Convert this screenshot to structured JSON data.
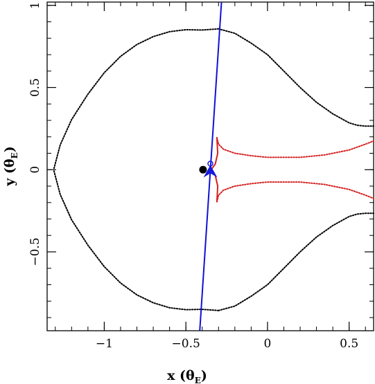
{
  "chart_data": {
    "type": "scatter",
    "xlabel": {
      "main": "x (θ",
      "sub": "E",
      "close": ")"
    },
    "ylabel": {
      "main": "y (θ",
      "sub": "E",
      "close": ")"
    },
    "xlim": [
      -1.35,
      0.65
    ],
    "ylim": [
      -0.98,
      1.02
    ],
    "x_ticks": [
      {
        "value": -1,
        "label": "−1"
      },
      {
        "value": -0.5,
        "label": "−0.5"
      },
      {
        "value": 0,
        "label": "0"
      },
      {
        "value": 0.5,
        "label": "0.5"
      }
    ],
    "y_ticks": [
      {
        "value": -0.5,
        "label": "−0.5"
      },
      {
        "value": 0,
        "label": "0"
      },
      {
        "value": 0.5,
        "label": "0.5"
      },
      {
        "value": 1,
        "label": "1"
      }
    ],
    "grid": false,
    "legend": false,
    "colors": {
      "critical_curve": "#000000",
      "caustic": "#d42020",
      "trajectory": "#1010d8",
      "source": "#1818e0",
      "lens": "#000000"
    },
    "critical_curve": {
      "upper": [
        [
          -0.3,
          0.857
        ],
        [
          -0.4,
          0.85
        ],
        [
          -0.5,
          0.852
        ],
        [
          -0.6,
          0.84
        ],
        [
          -0.7,
          0.81
        ],
        [
          -0.8,
          0.762
        ],
        [
          -0.9,
          0.69
        ],
        [
          -1.0,
          0.59
        ],
        [
          -1.1,
          0.46
        ],
        [
          -1.2,
          0.305
        ],
        [
          -1.27,
          0.15
        ],
        [
          -1.31,
          0.0
        ]
      ],
      "upper_right": [
        [
          -0.3,
          0.857
        ],
        [
          -0.2,
          0.83
        ],
        [
          -0.1,
          0.77
        ],
        [
          0.0,
          0.7
        ],
        [
          0.1,
          0.6
        ],
        [
          0.2,
          0.5
        ],
        [
          0.3,
          0.41
        ],
        [
          0.4,
          0.34
        ],
        [
          0.5,
          0.285
        ],
        [
          0.55,
          0.27
        ],
        [
          0.6,
          0.265
        ],
        [
          0.65,
          0.265
        ]
      ]
    },
    "caustic_upper": [
      [
        -0.31,
        0.195
      ],
      [
        -0.3,
        0.155
      ],
      [
        -0.27,
        0.125
      ],
      [
        -0.2,
        0.1
      ],
      [
        -0.1,
        0.085
      ],
      [
        0.0,
        0.075
      ],
      [
        0.2,
        0.075
      ],
      [
        0.35,
        0.09
      ],
      [
        0.5,
        0.12
      ],
      [
        0.6,
        0.155
      ],
      [
        0.65,
        0.175
      ]
    ],
    "caustic_left_upper": [
      [
        -0.31,
        0.195
      ],
      [
        -0.305,
        0.1
      ],
      [
        -0.32,
        0.035
      ],
      [
        -0.345,
        0.0
      ]
    ],
    "trajectory": [
      [
        -0.415,
        -0.98
      ],
      [
        -0.282,
        1.02
      ]
    ],
    "source": {
      "x": -0.35,
      "y": 0.02
    },
    "lens": {
      "x": -0.395,
      "y": 0.0
    }
  }
}
